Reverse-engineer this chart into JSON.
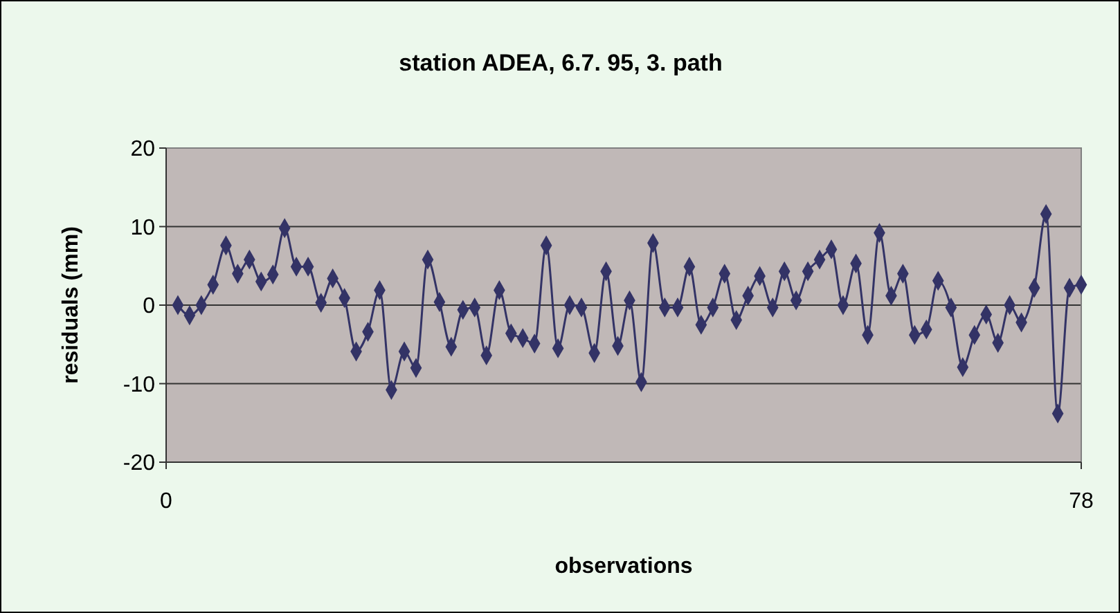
{
  "chart_data": {
    "type": "line",
    "title": "station ADEA, 6.7. 95, 3. path",
    "xlabel": "observations",
    "ylabel": "residuals (mm)",
    "x": [
      1.0,
      2.0,
      3.0,
      4.0,
      5.1,
      6.1,
      7.1,
      8.1,
      9.1,
      10.1,
      11.1,
      12.1,
      13.2,
      14.2,
      15.2,
      16.2,
      17.2,
      18.2,
      19.2,
      20.3,
      21.3,
      22.3,
      23.3,
      24.3,
      25.3,
      26.3,
      27.3,
      28.4,
      29.4,
      30.4,
      31.4,
      32.4,
      33.4,
      34.4,
      35.4,
      36.5,
      37.5,
      38.5,
      39.5,
      40.5,
      41.5,
      42.5,
      43.6,
      44.6,
      45.6,
      46.6,
      47.6,
      48.6,
      49.6,
      50.6,
      51.7,
      52.7,
      53.7,
      54.7,
      55.7,
      56.7,
      57.7,
      58.8,
      59.8,
      60.8,
      61.8,
      62.8,
      63.8,
      64.8,
      65.8,
      66.9,
      67.9,
      68.9,
      69.9,
      70.9,
      71.9,
      72.9,
      74.0,
      75.0,
      76.0,
      77.0,
      78.0
    ],
    "series": [
      {
        "color": "#333366",
        "values": [
          0,
          -1.3,
          0,
          2.6,
          7.6,
          4,
          5.8,
          3,
          3.9,
          9.8,
          4.9,
          4.9,
          0.3,
          3.4,
          0.9,
          -5.9,
          -3.4,
          1.9,
          -10.8,
          -5.9,
          -8,
          5.8,
          0.4,
          -5.3,
          -0.6,
          -0.3,
          -6.4,
          1.9,
          -3.6,
          -4.2,
          -4.9,
          7.6,
          -5.5,
          0,
          -0.3,
          -6.1,
          4.3,
          -5.2,
          0.6,
          -9.8,
          7.9,
          -0.3,
          -0.3,
          4.9,
          -2.5,
          -0.3,
          4.0,
          -1.9,
          1.2,
          3.7,
          -0.3,
          4.3,
          0.6,
          4.3,
          5.8,
          7.1,
          0,
          5.3,
          -3.8,
          9.2,
          1.2,
          4,
          -3.8,
          -3.1,
          3.1,
          -0.3,
          -7.9,
          -3.8,
          -1.2,
          -4.8,
          0,
          -2.2,
          2.2,
          11.6,
          -13.8,
          2.2,
          2.6
        ]
      }
    ],
    "xlim": [
      0,
      78
    ],
    "xticks": [
      0,
      78
    ],
    "ylim": [
      -20,
      20
    ],
    "yticks": [
      -20,
      -10,
      0,
      10,
      20
    ],
    "grid": "y",
    "marker": "diamond",
    "line_style": "solid"
  }
}
